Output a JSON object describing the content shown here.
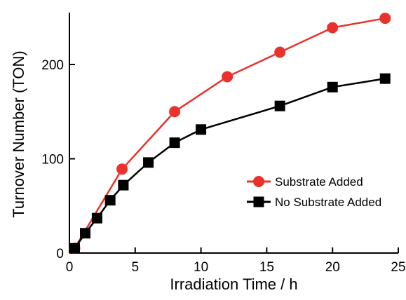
{
  "chart_data": {
    "type": "line",
    "title": "",
    "xlabel": "Irradiation Time / h",
    "ylabel": "Turnover Number (TON)",
    "xlim": [
      0,
      25
    ],
    "ylim": [
      0,
      255
    ],
    "x_ticks": [
      0,
      5,
      10,
      15,
      20,
      25
    ],
    "y_ticks": [
      0,
      100,
      200
    ],
    "x_tick_labels": [
      "0",
      "5",
      "10",
      "15",
      "20",
      "25"
    ],
    "y_tick_labels": [
      "0",
      "100",
      "200"
    ],
    "grid": false,
    "legend_position": "right",
    "series": [
      {
        "name": "Substrate Added",
        "color": "#e8322b",
        "marker": "circle",
        "x": [
          0.4,
          4,
          8,
          12,
          16,
          20,
          24
        ],
        "y": [
          5,
          89,
          150,
          187,
          213,
          239,
          249
        ]
      },
      {
        "name": "No Substrate Added",
        "color": "#000000",
        "marker": "square",
        "x": [
          0.4,
          1.2,
          2.1,
          3.1,
          4.1,
          6,
          8,
          10,
          16,
          20,
          24
        ],
        "y": [
          5,
          21,
          37,
          56,
          72,
          96,
          117,
          131,
          156,
          176,
          185
        ]
      }
    ]
  }
}
